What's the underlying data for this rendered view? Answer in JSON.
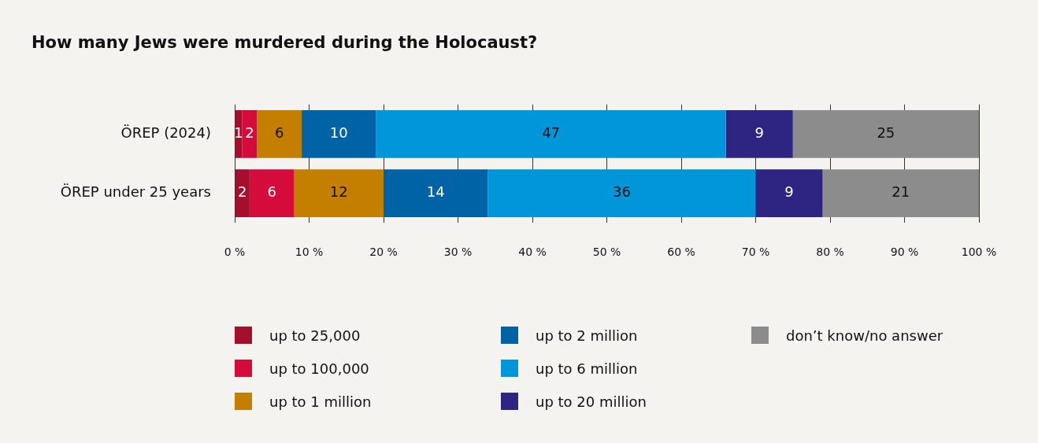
{
  "chart_data": {
    "type": "bar",
    "orientation": "horizontal",
    "stacked": true,
    "title": "How many Jews were murdered during the Holocaust?",
    "categories": [
      "ÖREP (2024)",
      "ÖREP under 25 years"
    ],
    "series": [
      {
        "name": "up to 25,000",
        "color": "#a50e2d",
        "values": [
          1,
          2
        ]
      },
      {
        "name": "up to 100,000",
        "color": "#d50b3c",
        "values": [
          2,
          6
        ]
      },
      {
        "name": "up to 1 million",
        "color": "#c47f00",
        "values": [
          6,
          12
        ]
      },
      {
        "name": "up to 2 million",
        "color": "#0063a6",
        "values": [
          10,
          14
        ]
      },
      {
        "name": "up to 6 million",
        "color": "#0096d9",
        "values": [
          47,
          36
        ]
      },
      {
        "name": "up to 20 million",
        "color": "#2e2482",
        "values": [
          9,
          9
        ]
      },
      {
        "name": "don’t know/no answer",
        "color": "#8c8c8c",
        "values": [
          25,
          21
        ]
      }
    ],
    "xlim": [
      0,
      100
    ],
    "xticks": [
      {
        "value": 0,
        "label": "0 %"
      },
      {
        "value": 10,
        "label": "10 %"
      },
      {
        "value": 20,
        "label": "20 %"
      },
      {
        "value": 30,
        "label": "30 %"
      },
      {
        "value": 40,
        "label": "40 %"
      },
      {
        "value": 50,
        "label": "50 %"
      },
      {
        "value": 60,
        "label": "60 %"
      },
      {
        "value": 70,
        "label": "70 %"
      },
      {
        "value": 80,
        "label": "80 %"
      },
      {
        "value": 90,
        "label": "90 %"
      },
      {
        "value": 100,
        "label": "100 %"
      }
    ],
    "grid": "x",
    "legend": "bottom",
    "data_labels": true
  }
}
